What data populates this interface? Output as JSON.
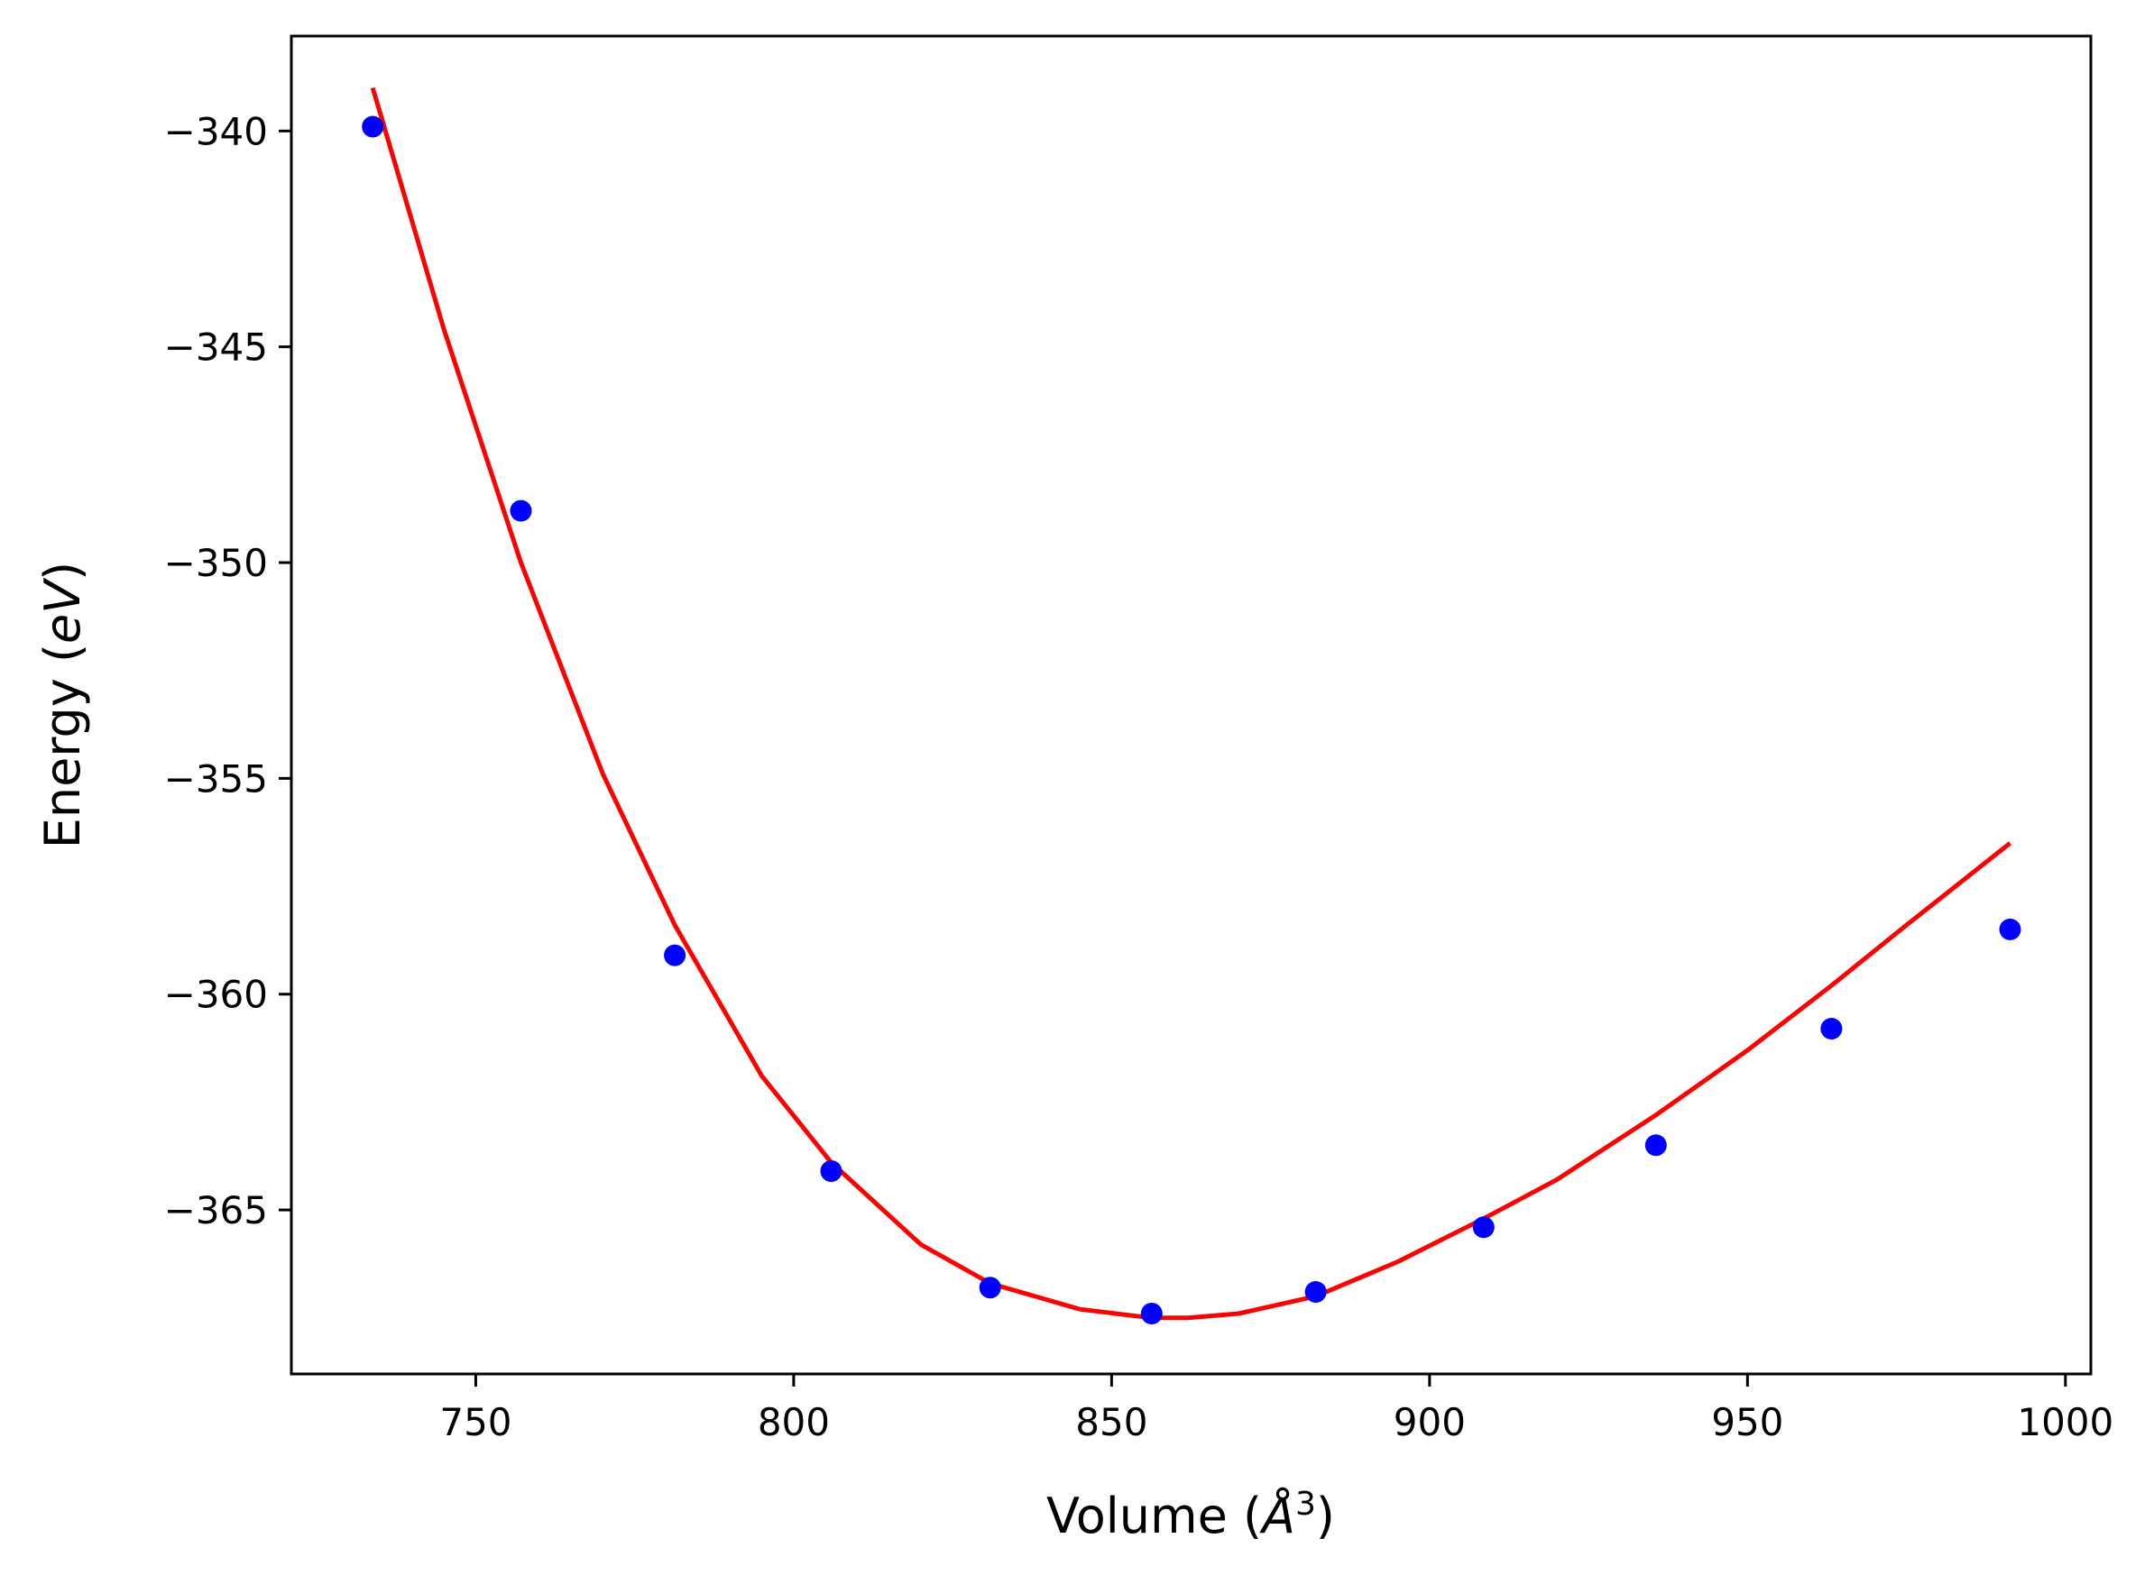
{
  "chart_data": {
    "type": "scatter",
    "title": "",
    "xlabel": "Volume",
    "xlabel_unit": "Å",
    "xlabel_unit_exp": "3",
    "ylabel": "Energy",
    "ylabel_unit": "eV",
    "xlim": [
      721,
      1004
    ],
    "ylim": [
      -368.8,
      -337.8
    ],
    "xticks": [
      750,
      800,
      850,
      900,
      950,
      1000
    ],
    "yticks": [
      -340,
      -345,
      -350,
      -355,
      -360,
      -365
    ],
    "xtick_labels": [
      "750",
      "800",
      "850",
      "900",
      "950",
      "1000"
    ],
    "ytick_labels": [
      "−340",
      "−345",
      "−350",
      "−355",
      "−360",
      "−365"
    ],
    "grid": false,
    "legend": "none",
    "series": [
      {
        "kind": "points",
        "color": "#0000ff",
        "x": [
          733.8,
          757.1,
          781.3,
          805.9,
          830.9,
          856.3,
          882.1,
          908.5,
          935.6,
          963.2,
          991.3
        ],
        "y": [
          -339.9,
          -348.8,
          -359.1,
          -364.1,
          -366.8,
          -367.4,
          -366.9,
          -365.4,
          -363.5,
          -360.8,
          -358.5
        ]
      },
      {
        "kind": "fit-curve",
        "color": "#ff0000",
        "x": [
          733.8,
          745,
          757.1,
          770,
          781.3,
          795,
          805.9,
          820,
          830.9,
          845,
          856.3,
          862,
          870,
          882.1,
          895,
          908.5,
          920,
          935.6,
          950,
          963.2,
          975,
          991.3
        ],
        "y": [
          -339.0,
          -344.6,
          -350.0,
          -354.9,
          -358.4,
          -361.9,
          -363.9,
          -365.8,
          -366.7,
          -367.3,
          -367.5,
          -367.5,
          -367.4,
          -367.0,
          -366.2,
          -365.2,
          -364.3,
          -362.8,
          -361.3,
          -359.8,
          -358.4,
          -356.5
        ]
      }
    ]
  }
}
